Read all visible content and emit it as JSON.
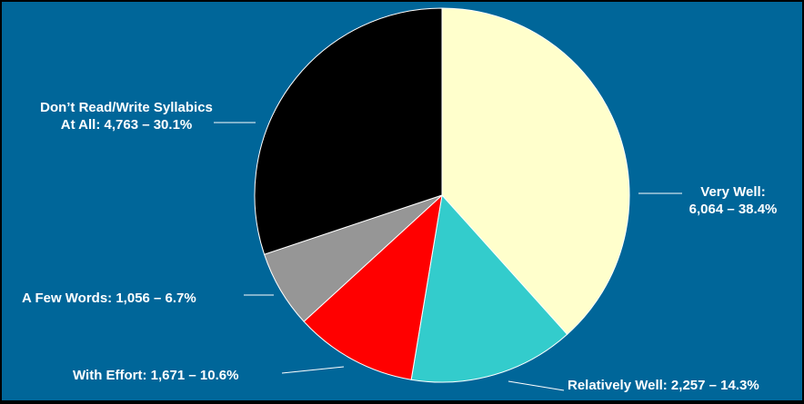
{
  "chart_data": {
    "type": "pie",
    "colors": {
      "background": "#006699",
      "slice_border": "#ffffff",
      "label_text": "#ffffff"
    },
    "slices": [
      {
        "label_line1": "Very Well:",
        "label_line2": "6,064 – 38.4%",
        "value": 6064,
        "percent": 38.4,
        "color": "#ffffcc"
      },
      {
        "label": "Relatively Well: 2,257 – 14.3%",
        "value": 2257,
        "percent": 14.3,
        "color": "#33cccc"
      },
      {
        "label": "With Effort: 1,671 – 10.6%",
        "value": 1671,
        "percent": 10.6,
        "color": "#ff0000"
      },
      {
        "label": "A Few Words: 1,056 – 6.7%",
        "value": 1056,
        "percent": 6.7,
        "color": "#969696"
      },
      {
        "label_line1": "Don’t Read/Write Syllabics",
        "label_line2": "At All: 4,763 – 30.1%",
        "value": 4763,
        "percent": 30.1,
        "color": "#000000"
      }
    ]
  }
}
